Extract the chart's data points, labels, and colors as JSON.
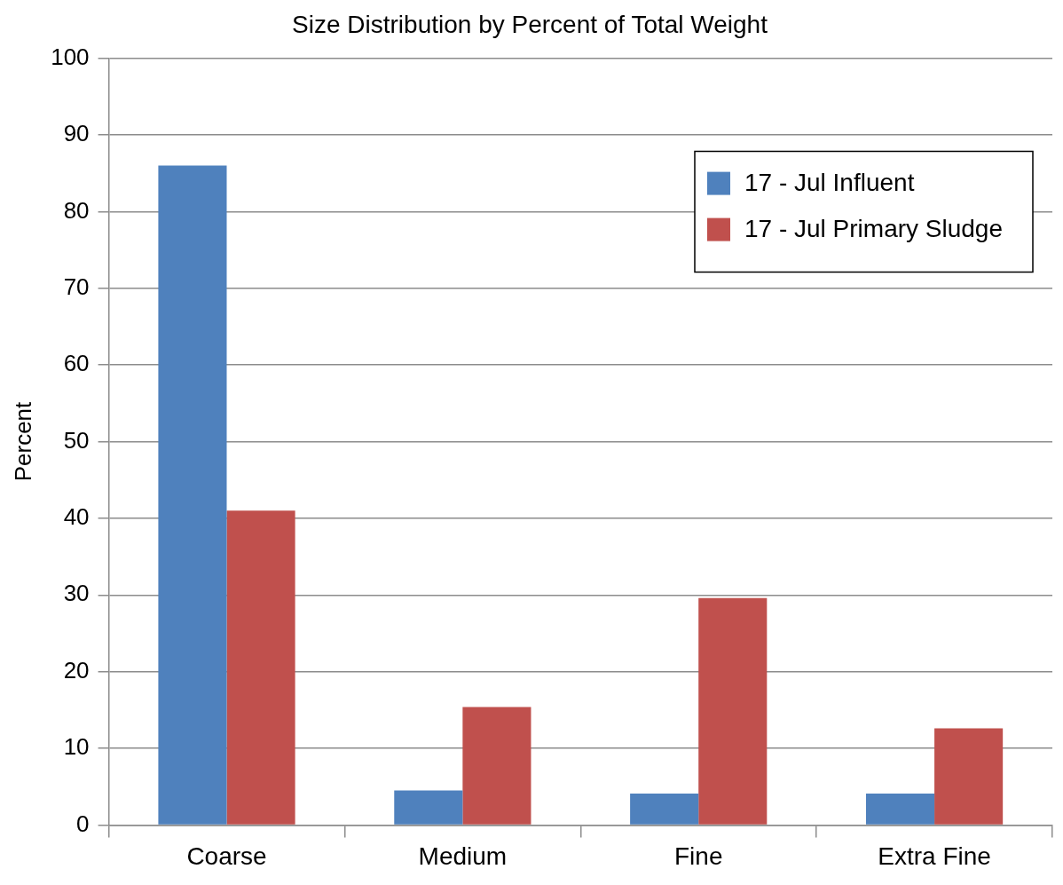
{
  "chart_data": {
    "type": "bar",
    "title": "Size Distribution by Percent of Total Weight",
    "ylabel": "Percent",
    "categories": [
      "Coarse",
      "Medium",
      "Fine",
      "Extra Fine"
    ],
    "series": [
      {
        "name": "17 - Jul Influent",
        "color": "#4f81bd",
        "values": [
          86,
          4.5,
          4.1,
          4.1
        ]
      },
      {
        "name": "17 - Jul Primary Sludge",
        "color": "#c0504d",
        "values": [
          41,
          15.4,
          29.6,
          12.6
        ]
      }
    ],
    "ylim": [
      0,
      100
    ],
    "yticks": [
      0,
      10,
      20,
      30,
      40,
      50,
      60,
      70,
      80,
      90,
      100
    ],
    "grid": "y",
    "legend": "top right"
  }
}
